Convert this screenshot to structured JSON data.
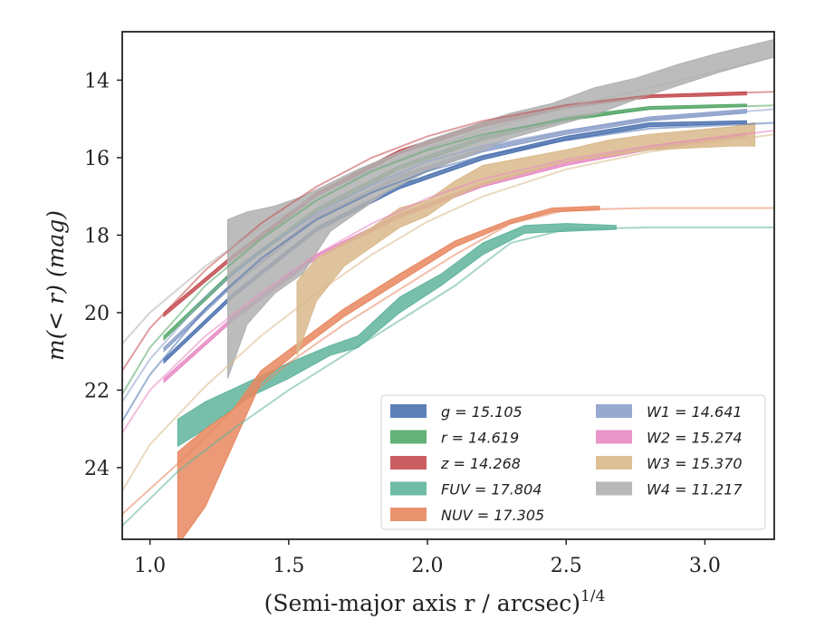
{
  "chart_data": {
    "type": "line",
    "xlabel": "(Semi-major axis r / arcsec)",
    "xlabel_superscript": "1/4",
    "ylabel": "m(< r) (mag)",
    "xlim": [
      0.9,
      3.25
    ],
    "ylim": [
      25.85,
      12.75
    ],
    "y_inverted": true,
    "grid": false,
    "legend_position": "bottom-right",
    "x_ticks": [
      1.0,
      1.5,
      2.0,
      2.5,
      3.0
    ],
    "x_tick_labels": [
      "1.0",
      "1.5",
      "2.0",
      "2.5",
      "3.0"
    ],
    "y_ticks": [
      14,
      16,
      18,
      20,
      22,
      24
    ],
    "y_tick_labels": [
      "14",
      "16",
      "18",
      "20",
      "22",
      "24"
    ],
    "series": [
      {
        "name": "g = 15.105",
        "color": "#4c72b0",
        "model_x": [
          0.9,
          1.0,
          1.2,
          1.4,
          1.6,
          1.8,
          2.0,
          2.2,
          2.5,
          2.8,
          3.25
        ],
        "model_y": [
          22.8,
          21.6,
          19.9,
          18.6,
          17.6,
          16.9,
          16.35,
          15.95,
          15.55,
          15.25,
          15.1
        ],
        "data_x": [
          1.05,
          1.3,
          1.6,
          1.9,
          2.2,
          2.5,
          2.8,
          3.15
        ],
        "data_lower": [
          21.3,
          19.6,
          17.9,
          16.8,
          16.05,
          15.55,
          15.2,
          15.12
        ],
        "data_upper": [
          21.2,
          19.5,
          17.8,
          16.7,
          15.95,
          15.45,
          15.1,
          15.05
        ]
      },
      {
        "name": "r = 14.619",
        "color": "#55a868",
        "model_x": [
          0.9,
          1.0,
          1.2,
          1.4,
          1.6,
          1.8,
          2.0,
          2.2,
          2.5,
          2.8,
          3.25
        ],
        "model_y": [
          22.1,
          20.9,
          19.3,
          18.1,
          17.1,
          16.35,
          15.8,
          15.4,
          15.0,
          14.75,
          14.65
        ],
        "data_x": [
          1.05,
          1.3,
          1.6,
          1.9,
          2.2,
          2.5,
          2.8,
          3.15
        ],
        "data_lower": [
          20.7,
          19.0,
          17.4,
          16.3,
          15.55,
          15.05,
          14.75,
          14.68
        ],
        "data_upper": [
          20.6,
          18.9,
          17.3,
          16.2,
          15.45,
          14.95,
          14.68,
          14.62
        ]
      },
      {
        "name": "z = 14.268",
        "color": "#c44e52",
        "model_x": [
          0.9,
          1.0,
          1.2,
          1.4,
          1.6,
          1.8,
          2.0,
          2.2,
          2.5,
          2.8,
          3.25
        ],
        "model_y": [
          21.5,
          20.4,
          18.9,
          17.7,
          16.75,
          16.0,
          15.45,
          15.05,
          14.65,
          14.4,
          14.3
        ],
        "data_x": [
          1.05,
          1.3,
          1.6,
          1.9,
          2.2,
          2.5,
          2.8,
          3.15
        ],
        "data_lower": [
          20.1,
          18.6,
          17.0,
          15.9,
          15.2,
          14.72,
          14.45,
          14.38
        ],
        "data_upper": [
          20.0,
          18.5,
          16.9,
          15.8,
          15.1,
          14.62,
          14.38,
          14.3
        ]
      },
      {
        "name": "FUV = 17.804",
        "color": "#5fb49c",
        "model_x": [
          0.9,
          1.1,
          1.3,
          1.5,
          1.7,
          1.9,
          2.1,
          2.3,
          2.5,
          2.8,
          3.25
        ],
        "model_y": [
          25.5,
          24.1,
          23.0,
          22.0,
          21.1,
          20.2,
          19.3,
          18.2,
          17.85,
          17.8,
          17.8
        ],
        "data_x": [
          1.1,
          1.2,
          1.35,
          1.5,
          1.65,
          1.75,
          1.9,
          2.05,
          2.2,
          2.35,
          2.5,
          2.68
        ],
        "data_lower": [
          23.45,
          23.0,
          22.2,
          21.7,
          21.1,
          20.9,
          20.0,
          19.3,
          18.5,
          17.95,
          17.9,
          17.85
        ],
        "data_upper": [
          22.75,
          22.3,
          21.8,
          21.3,
          20.85,
          20.6,
          19.6,
          19.0,
          18.2,
          17.75,
          17.7,
          17.75
        ]
      },
      {
        "name": "NUV = 17.305",
        "color": "#e8875f",
        "model_x": [
          0.9,
          1.1,
          1.3,
          1.5,
          1.7,
          1.9,
          2.1,
          2.3,
          2.5,
          2.8,
          3.25
        ],
        "model_y": [
          25.2,
          23.9,
          22.5,
          21.3,
          20.3,
          19.4,
          18.5,
          17.7,
          17.35,
          17.3,
          17.3
        ],
        "data_x": [
          1.1,
          1.2,
          1.3,
          1.4,
          1.55,
          1.7,
          1.9,
          2.1,
          2.3,
          2.45,
          2.62
        ],
        "data_lower": [
          26.0,
          25.0,
          23.4,
          21.8,
          20.9,
          20.1,
          19.2,
          18.3,
          17.7,
          17.4,
          17.35
        ],
        "data_upper": [
          23.6,
          23.0,
          22.5,
          21.5,
          20.7,
          19.9,
          19.0,
          18.15,
          17.6,
          17.3,
          17.25
        ]
      },
      {
        "name": "W1 = 14.641",
        "color": "#8da0cb",
        "model_x": [
          0.9,
          1.0,
          1.2,
          1.4,
          1.6,
          1.8,
          2.0,
          2.2,
          2.5,
          2.8,
          3.25
        ],
        "model_y": [
          22.3,
          21.2,
          19.6,
          18.4,
          17.45,
          16.7,
          16.1,
          15.7,
          15.3,
          15.0,
          14.75
        ],
        "data_x": [
          1.05,
          1.3,
          1.6,
          1.9,
          2.2,
          2.5,
          2.8,
          3.15
        ],
        "data_lower": [
          21.0,
          19.3,
          17.6,
          16.55,
          15.85,
          15.4,
          15.05,
          14.85
        ],
        "data_upper": [
          20.9,
          19.2,
          17.5,
          16.45,
          15.75,
          15.3,
          14.95,
          14.75
        ]
      },
      {
        "name": "W2 = 15.274",
        "color": "#e78ac3",
        "model_x": [
          0.9,
          1.0,
          1.2,
          1.4,
          1.6,
          1.8,
          2.0,
          2.2,
          2.5,
          2.8,
          3.25
        ],
        "model_y": [
          23.1,
          22.0,
          20.6,
          19.5,
          18.5,
          17.7,
          17.05,
          16.55,
          16.05,
          15.7,
          15.3
        ],
        "data_x": [
          1.05,
          1.3,
          1.6,
          1.9,
          2.2,
          2.5,
          2.8,
          3.15
        ],
        "data_lower": [
          21.8,
          20.2,
          18.6,
          17.55,
          16.75,
          16.2,
          15.8,
          15.45
        ],
        "data_upper": [
          21.7,
          20.1,
          18.5,
          17.45,
          16.65,
          16.1,
          15.7,
          15.35
        ]
      },
      {
        "name": "W3 = 15.370",
        "color": "#d9b98b",
        "model_x": [
          0.9,
          1.0,
          1.2,
          1.4,
          1.6,
          1.8,
          2.0,
          2.2,
          2.5,
          2.8,
          3.25
        ],
        "model_y": [
          24.6,
          23.4,
          21.9,
          20.6,
          19.5,
          18.5,
          17.65,
          17.0,
          16.3,
          15.85,
          15.4
        ],
        "data_x": [
          1.53,
          1.6,
          1.7,
          1.8,
          1.9,
          2.0,
          2.1,
          2.2,
          2.35,
          2.5,
          2.65,
          2.8,
          2.95,
          3.1,
          3.18
        ],
        "data_lower": [
          21.1,
          19.7,
          18.8,
          18.3,
          17.8,
          17.5,
          17.0,
          16.7,
          16.4,
          16.1,
          15.95,
          15.8,
          15.75,
          15.7,
          15.7
        ],
        "data_upper": [
          19.2,
          18.6,
          18.2,
          17.8,
          17.3,
          17.1,
          16.6,
          16.2,
          16.0,
          15.8,
          15.55,
          15.4,
          15.3,
          15.2,
          15.1
        ]
      },
      {
        "name": "W4 = 11.217",
        "color": "#b0b0b0",
        "model_x": [
          0.9,
          1.0,
          1.2,
          1.4,
          1.6,
          1.8,
          2.0,
          2.2,
          2.5,
          2.8,
          3.25
        ],
        "model_y": [
          20.8,
          20.0,
          18.8,
          17.8,
          17.0,
          16.3,
          15.75,
          15.3,
          14.7,
          14.2,
          13.4
        ],
        "data_x": [
          1.28,
          1.35,
          1.45,
          1.55,
          1.65,
          1.75,
          1.85,
          2.0,
          2.15,
          2.3,
          2.45,
          2.6,
          2.75,
          2.9,
          3.05,
          3.25
        ],
        "data_lower": [
          21.7,
          20.3,
          19.5,
          19.0,
          17.9,
          17.4,
          16.9,
          16.35,
          15.95,
          15.5,
          15.2,
          14.9,
          14.5,
          14.15,
          13.8,
          13.4
        ],
        "data_upper": [
          17.6,
          17.4,
          17.25,
          17.0,
          16.65,
          16.3,
          16.0,
          15.55,
          15.2,
          14.85,
          14.6,
          14.2,
          13.95,
          13.6,
          13.3,
          12.95
        ]
      }
    ]
  }
}
